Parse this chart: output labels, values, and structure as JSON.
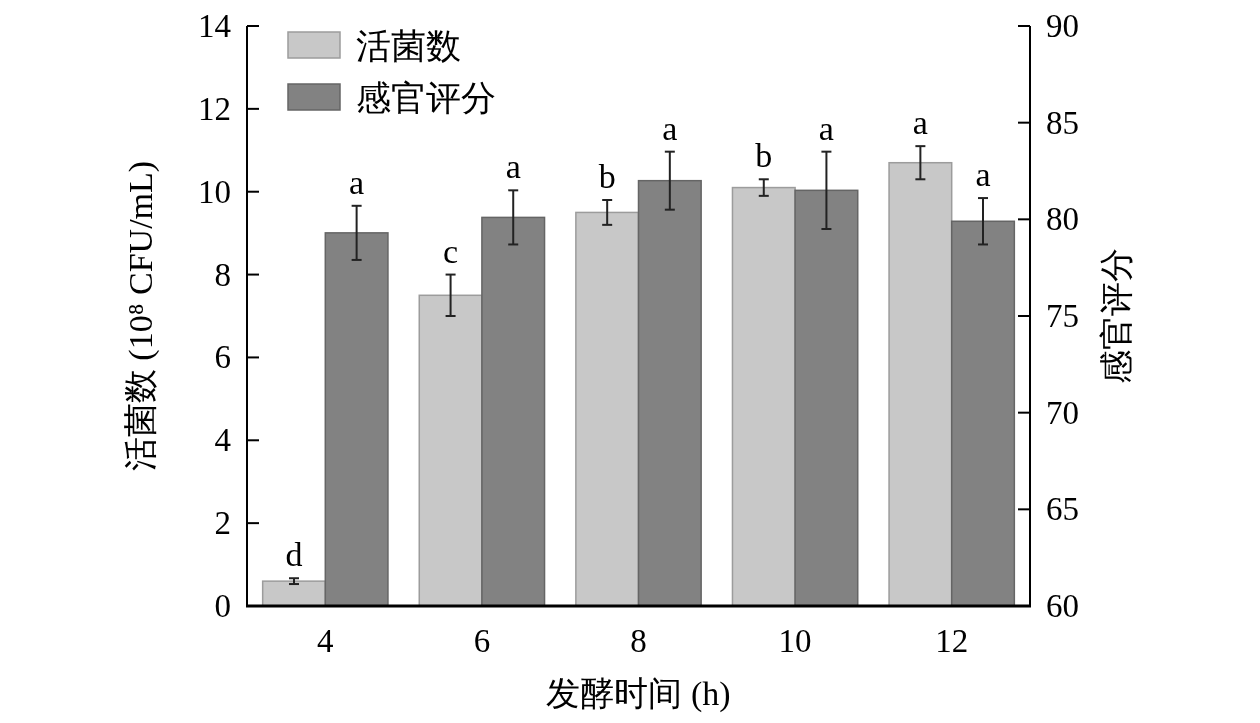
{
  "chart_data": {
    "type": "bar",
    "xlabel": "发酵时间 (h)",
    "ylabel": "活菌数 (10⁸ CFU/mL)",
    "y2label": "感官评分",
    "categories": [
      "4",
      "6",
      "8",
      "10",
      "12"
    ],
    "series": [
      {
        "name": "活菌数",
        "color": "#c8c8c8",
        "values": [
          0.6,
          7.5,
          9.5,
          10.1,
          10.7
        ],
        "errors": [
          0.07,
          0.5,
          0.3,
          0.2,
          0.4
        ],
        "value_labels": [
          "d",
          "c",
          "b",
          "b",
          "a"
        ]
      },
      {
        "name": "感官评分",
        "color": "#828282",
        "axis": "y2",
        "values": [
          79.3,
          80.1,
          82.0,
          81.5,
          79.9
        ],
        "errors": [
          1.4,
          1.4,
          1.5,
          2.0,
          1.2
        ],
        "value_labels": [
          "a",
          "a",
          "a",
          "a",
          "a"
        ]
      }
    ],
    "ylim": [
      0,
      14
    ],
    "yticks": [
      0,
      2,
      4,
      6,
      8,
      10,
      12,
      14
    ],
    "y2lim": [
      60,
      90
    ],
    "y2ticks": [
      60,
      65,
      70,
      75,
      80,
      85,
      90
    ],
    "legend": "top left"
  }
}
